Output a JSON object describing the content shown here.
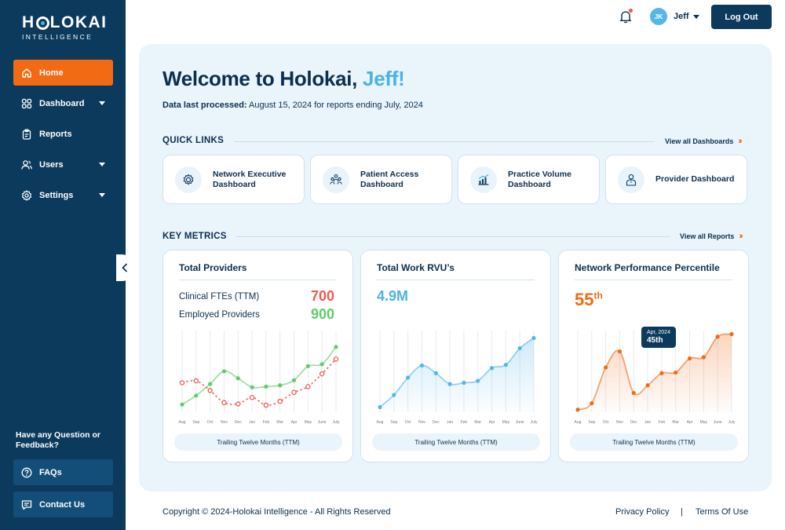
{
  "logo": {
    "main_a": "H",
    "main_b": "LOKAI",
    "sub": "INTELLIGENCE"
  },
  "sidebar": {
    "items": [
      {
        "label": "Home",
        "icon": "home-icon"
      },
      {
        "label": "Dashboard",
        "icon": "grid-icon"
      },
      {
        "label": "Reports",
        "icon": "clipboard-icon"
      },
      {
        "label": "Users",
        "icon": "users-icon"
      },
      {
        "label": "Settings",
        "icon": "gear-icon"
      }
    ],
    "help_text": "Have any Question or Feedback?",
    "faq_label": "FAQs",
    "contact_label": "Contact Us"
  },
  "header": {
    "avatar_initials": "JK",
    "user_name": "Jeff",
    "logout_label": "Log Out"
  },
  "welcome": {
    "prefix": "Welcome to Holokai, ",
    "name": "Jeff!",
    "processed_label": "Data last processed:",
    "processed_text": " August 15, 2024 for reports ending July, 2024"
  },
  "quick_links": {
    "title": "QUICK LINKS",
    "view_all": "View all Dashboards",
    "cards": [
      {
        "label": "Network Executive Dashboard"
      },
      {
        "label": "Patient Access Dashboard"
      },
      {
        "label": "Practice Volume Dashboard"
      },
      {
        "label": "Provider Dashboard"
      }
    ]
  },
  "key_metrics": {
    "title": "KEY METRICS",
    "view_all": "View all Reports",
    "ttm_label": "Trailing Twelve Months (TTM)"
  },
  "metrics": {
    "providers": {
      "title": "Total Providers",
      "fte_label": "Clinical FTEs (TTM)",
      "fte_value": "700",
      "employed_label": "Employed Providers",
      "employed_value": "900"
    },
    "rvu": {
      "title": "Total Work RVU’s",
      "value": "4.9M"
    },
    "percentile": {
      "title": "Network Performance Percentile",
      "value": "55",
      "suffix": "th",
      "tooltip_month": "Apr, 2024",
      "tooltip_value": "45th"
    }
  },
  "colors": {
    "sidebar": "#0b3a5c",
    "accent_orange": "#f26a13",
    "accent_blue": "#4ab3e6",
    "green": "#5fcc6b",
    "red": "#f05a50"
  },
  "chart_data": [
    {
      "type": "line",
      "title": "Total Providers",
      "x": [
        "Aug",
        "Sep",
        "Oct",
        "Nov",
        "Dec",
        "Jan",
        "Feb",
        "Mar",
        "Apr",
        "May",
        "June",
        "July"
      ],
      "series": [
        {
          "name": "Employed Providers",
          "values": [
            12,
            26,
            44,
            64,
            53,
            39,
            40,
            42,
            50,
            72,
            75,
            102
          ]
        },
        {
          "name": "Clinical FTEs (TTM)",
          "values": [
            46,
            49,
            34,
            15,
            13,
            23,
            11,
            17,
            31,
            40,
            60,
            83
          ]
        }
      ],
      "ylim": [
        0,
        130
      ],
      "xlabel": "",
      "ylabel": ""
    },
    {
      "type": "line",
      "title": "Total Work RVU’s",
      "x": [
        "Aug",
        "Sep",
        "Oct",
        "Nov",
        "Dec",
        "Jan",
        "Feb",
        "Mar",
        "Apr",
        "May",
        "June",
        "July"
      ],
      "series": [
        {
          "name": "Total Work RVU’s",
          "values": [
            8,
            27,
            54,
            73,
            61,
            44,
            46,
            49,
            69,
            74,
            100,
            116
          ]
        }
      ],
      "ylim": [
        0,
        130
      ],
      "xlabel": "",
      "ylabel": ""
    },
    {
      "type": "line",
      "title": "Network Performance Percentile",
      "x": [
        "Aug",
        "Sep",
        "Oct",
        "Nov",
        "Dec",
        "Jan",
        "Feb",
        "Mar",
        "Apr",
        "May",
        "June",
        "July"
      ],
      "series": [
        {
          "name": "Network Performance Percentile",
          "values": [
            4,
            14,
            70,
            95,
            30,
            42,
            61,
            62,
            84,
            86,
            118,
            122
          ]
        }
      ],
      "ylim": [
        0,
        130
      ],
      "xlabel": "",
      "ylabel": ""
    }
  ]
}
